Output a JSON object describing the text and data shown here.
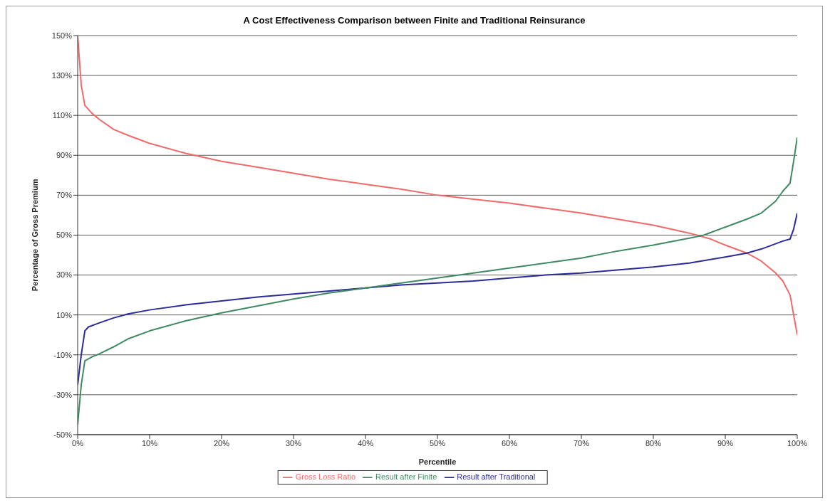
{
  "chart_data": {
    "type": "line",
    "title": "A Cost Effectiveness Comparison between Finite and Traditional Reinsurance",
    "xlabel": "Percentile",
    "ylabel": "Percentage of Gross Premium",
    "xlim": [
      0,
      100
    ],
    "xticks": [
      {
        "value": 0,
        "label": "0%"
      },
      {
        "value": 10,
        "label": "10%"
      },
      {
        "value": 20,
        "label": "20%"
      },
      {
        "value": 30,
        "label": "30%"
      },
      {
        "value": 40,
        "label": "40%"
      },
      {
        "value": 50,
        "label": "50%"
      },
      {
        "value": 60,
        "label": "60%"
      },
      {
        "value": 70,
        "label": "70%"
      },
      {
        "value": 80,
        "label": "80%"
      },
      {
        "value": 90,
        "label": "90%"
      },
      {
        "value": 100,
        "label": "100%"
      }
    ],
    "ylim": [
      -50,
      150
    ],
    "yticks": [
      {
        "value": -50,
        "label": "-50%"
      },
      {
        "value": -30,
        "label": "-30%"
      },
      {
        "value": -10,
        "label": "-10%"
      },
      {
        "value": 10,
        "label": "10%"
      },
      {
        "value": 30,
        "label": "30%"
      },
      {
        "value": 50,
        "label": "50%"
      },
      {
        "value": 70,
        "label": "70%"
      },
      {
        "value": 90,
        "label": "90%"
      },
      {
        "value": 110,
        "label": "110%"
      },
      {
        "value": 130,
        "label": "130%"
      },
      {
        "value": 150,
        "label": "150%"
      }
    ],
    "grid": "y",
    "legend": "bottom",
    "marker": "none",
    "line_style": "solid",
    "series": [
      {
        "name": "Gross Loss Ratio",
        "color": "#f06a6a",
        "x": [
          0,
          0.5,
          1,
          2,
          3,
          5,
          7,
          10,
          15,
          20,
          25,
          30,
          35,
          40,
          45,
          50,
          55,
          60,
          65,
          70,
          75,
          80,
          85,
          88,
          90,
          93,
          95,
          97,
          98,
          99,
          99.5,
          100
        ],
        "values": [
          150,
          125,
          115,
          111,
          108,
          103,
          100,
          96,
          91,
          87,
          84,
          81,
          78,
          75.5,
          73,
          70,
          68,
          66,
          63.5,
          61,
          58,
          55,
          51,
          48,
          45,
          41,
          37,
          31,
          27,
          20,
          10,
          0
        ]
      },
      {
        "name": "Result after Traditional",
        "color": "#2b2b9a",
        "x": [
          0,
          0.5,
          1,
          1.5,
          3,
          5,
          7,
          10,
          15,
          20,
          25,
          30,
          35,
          40,
          45,
          50,
          55,
          60,
          65,
          70,
          75,
          80,
          85,
          90,
          93,
          95,
          98,
          99,
          99.5,
          100
        ],
        "values": [
          -25,
          -10,
          2,
          4,
          6,
          8.5,
          10.5,
          12.5,
          15,
          17,
          19,
          20.5,
          22,
          23.5,
          25,
          26,
          27,
          28.5,
          30,
          31,
          32.5,
          34,
          36,
          39,
          41,
          43,
          47,
          48,
          53,
          61
        ]
      },
      {
        "name": "Result after Finite",
        "color": "#3f8a63",
        "x": [
          0,
          0.5,
          1,
          2,
          3,
          5,
          7,
          10,
          15,
          20,
          25,
          30,
          35,
          40,
          45,
          50,
          55,
          60,
          65,
          70,
          75,
          80,
          85,
          87,
          90,
          93,
          95,
          97,
          98,
          99,
          99.5,
          100
        ],
        "values": [
          -45,
          -25,
          -13,
          -11,
          -9.5,
          -6,
          -2,
          2,
          7,
          11,
          14.5,
          18,
          21,
          23.5,
          26,
          28.5,
          31,
          33.5,
          36,
          38.5,
          42,
          45,
          48.5,
          50,
          54,
          58,
          61,
          67,
          72,
          76,
          87,
          99
        ]
      }
    ]
  }
}
